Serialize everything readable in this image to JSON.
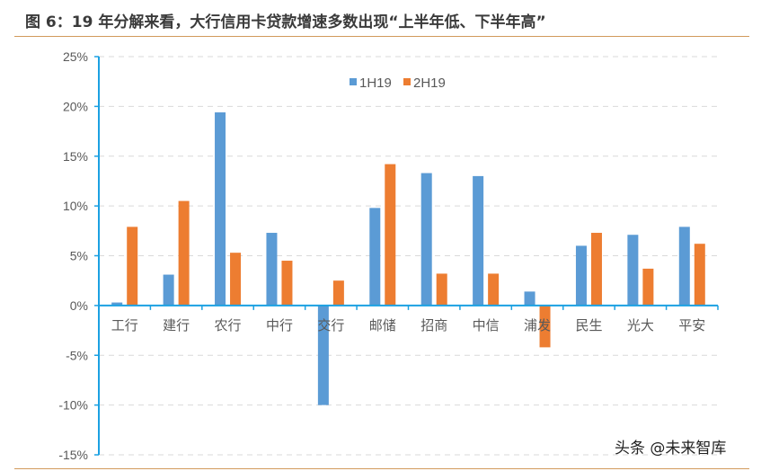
{
  "title": "图 6：19 年分解来看，大行信用卡贷款增速多数出现“上半年低、下半年高”",
  "watermark": "头条 @未来智库",
  "colors": {
    "series_1h19": "#5b9bd5",
    "series_2h19": "#ed7d31",
    "axis": "#1ba1e2",
    "grid": "#d9d9d9",
    "rule": "#d29a5c"
  },
  "chart_data": {
    "type": "bar",
    "title": "19 年分解来看，大行信用卡贷款增速多数出现“上半年低、下半年高”",
    "xlabel": "",
    "ylabel": "",
    "categories": [
      "工行",
      "建行",
      "农行",
      "中行",
      "交行",
      "邮储",
      "招商",
      "中信",
      "浦发",
      "民生",
      "光大",
      "平安"
    ],
    "series": [
      {
        "name": "1H19",
        "values": [
          0.3,
          3.1,
          19.4,
          7.3,
          -10.0,
          9.8,
          13.3,
          13.0,
          1.4,
          6.0,
          7.1,
          7.9
        ]
      },
      {
        "name": "2H19",
        "values": [
          7.9,
          10.5,
          5.3,
          4.5,
          2.5,
          14.2,
          3.2,
          3.2,
          -4.2,
          7.3,
          3.7,
          6.2
        ]
      }
    ],
    "ylim": [
      -15,
      25
    ],
    "yticks": [
      25,
      20,
      15,
      10,
      5,
      0,
      -5,
      -10,
      -15
    ],
    "ytick_labels": [
      "25%",
      "20%",
      "15%",
      "10%",
      "5%",
      "0%",
      "-5%",
      "-10%",
      "-15%"
    ],
    "grid": true,
    "grid_style": "dashed",
    "legend_position": "top-center",
    "unit": "%"
  }
}
